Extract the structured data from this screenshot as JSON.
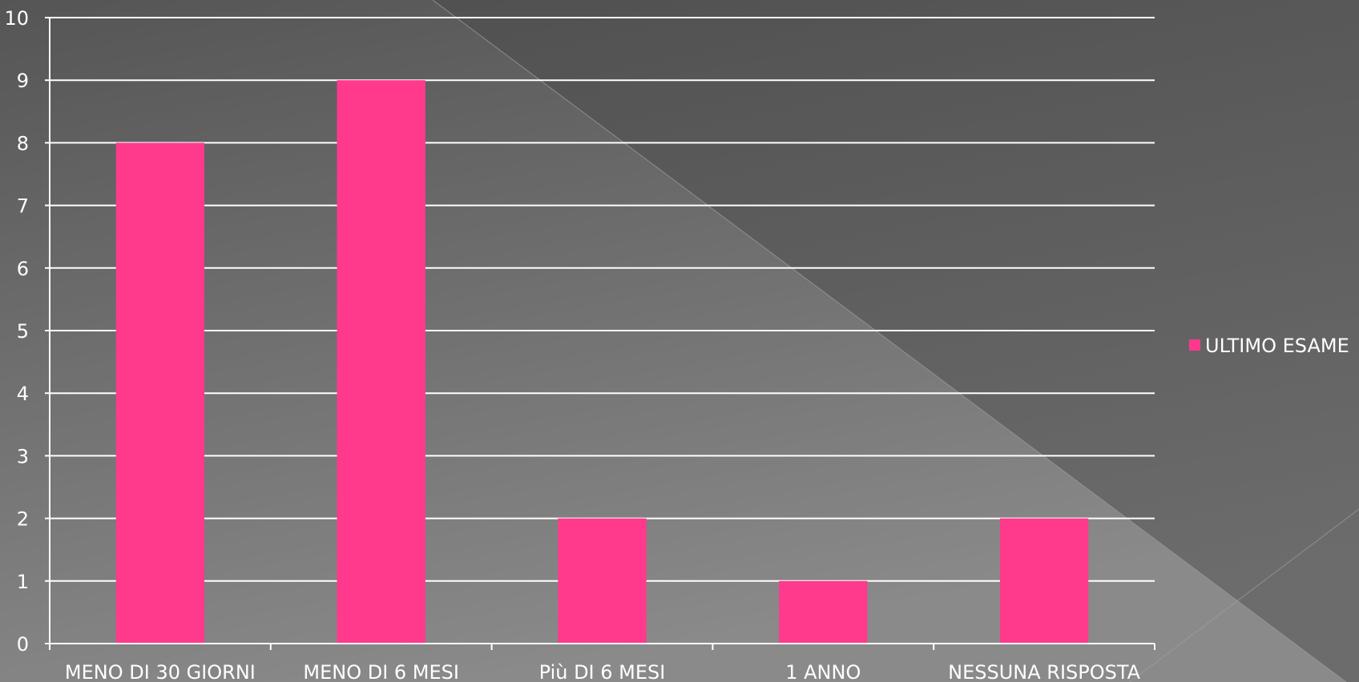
{
  "chart_data": {
    "type": "bar",
    "title": "",
    "xlabel": "",
    "ylabel": "",
    "categories": [
      "MENO DI 30 GIORNI",
      "MENO DI 6 MESI",
      "Più DI 6 MESI",
      "1 ANNO",
      "NESSUNA RISPOSTA"
    ],
    "series": [
      {
        "name": "ULTIMO ESAME",
        "values": [
          8,
          9,
          2,
          1,
          2
        ],
        "color": "#ff3a8c"
      }
    ],
    "ylim": [
      0,
      10
    ],
    "yticks": [
      "0",
      "1",
      "2",
      "3",
      "4",
      "5",
      "6",
      "7",
      "8",
      "9",
      "10"
    ],
    "grid": true,
    "legend_position": "right"
  },
  "colors": {
    "background_dark": "#555555",
    "background_light": "#8a8a8a",
    "gridline": "#ffffff",
    "text": "#ffffff"
  }
}
